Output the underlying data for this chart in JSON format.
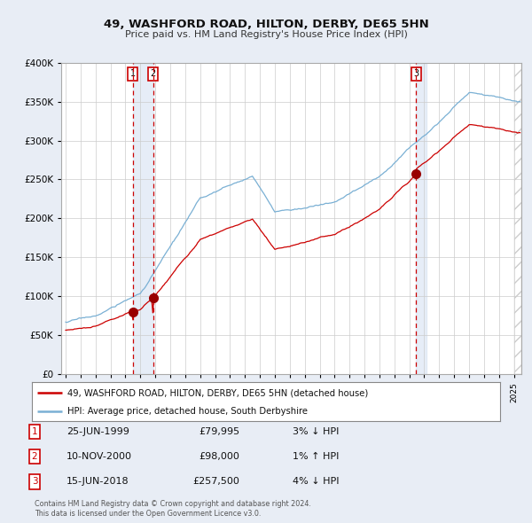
{
  "title1": "49, WASHFORD ROAD, HILTON, DERBY, DE65 5HN",
  "title2": "Price paid vs. HM Land Registry's House Price Index (HPI)",
  "hpi_label": "HPI: Average price, detached house, South Derbyshire",
  "property_label": "49, WASHFORD ROAD, HILTON, DERBY, DE65 5HN (detached house)",
  "footer1": "Contains HM Land Registry data © Crown copyright and database right 2024.",
  "footer2": "This data is licensed under the Open Government Licence v3.0.",
  "transactions": [
    {
      "num": 1,
      "date": "25-JUN-1999",
      "price": "£79,995",
      "hpi_rel": "3% ↓ HPI"
    },
    {
      "num": 2,
      "date": "10-NOV-2000",
      "price": "£98,000",
      "hpi_rel": "1% ↑ HPI"
    },
    {
      "num": 3,
      "date": "15-JUN-2018",
      "price": "£257,500",
      "hpi_rel": "4% ↓ HPI"
    }
  ],
  "t1_x": 1999.5,
  "t2_x": 2000.85,
  "t3_x": 2018.46,
  "t1_y": 79995,
  "t2_y": 98000,
  "t3_y": 257500,
  "ylim": [
    0,
    400000
  ],
  "xlim_start": 1994.7,
  "xlim_end": 2025.5,
  "bg_color": "#e8edf5",
  "plot_bg": "#ffffff",
  "grid_color": "#cccccc",
  "hpi_line_color": "#7ab0d4",
  "price_line_color": "#cc0000",
  "vline_color": "#cc0000",
  "shade_color": "#dce6f5",
  "marker_color": "#990000",
  "box_color": "#cc0000",
  "yticks": [
    0,
    50000,
    100000,
    150000,
    200000,
    250000,
    300000,
    350000,
    400000
  ]
}
